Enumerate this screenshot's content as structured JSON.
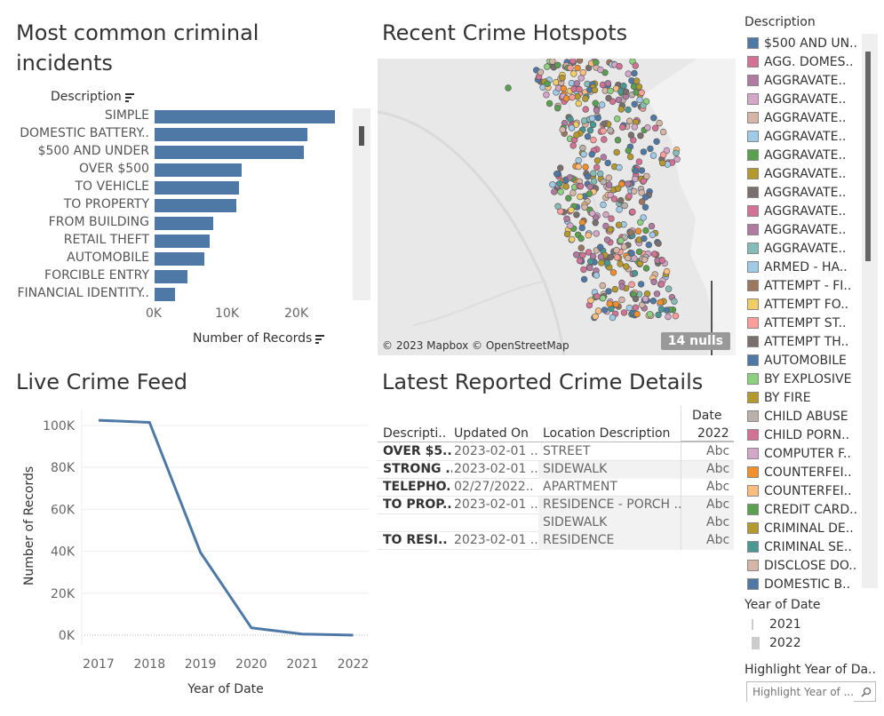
{
  "panels": {
    "bar_title": "Most common criminal incidents",
    "map_title": "Recent Crime Hotspots",
    "line_title": "Live Crime Feed",
    "table_title": "Latest Reported Crime Details"
  },
  "bar_chart": {
    "header": "Description",
    "xlabel": "Number of Records",
    "ticks": [
      "0K",
      "10K",
      "20K"
    ]
  },
  "map": {
    "attribution": "© 2023 Mapbox © OpenStreetMap",
    "nulls": "14 nulls"
  },
  "line_chart": {
    "ylabel": "Number of Records",
    "xlabel": "Year of Date",
    "yticks": [
      "100K",
      "80K",
      "60K",
      "40K",
      "20K",
      "0K"
    ],
    "xticks": [
      "2017",
      "2018",
      "2019",
      "2020",
      "2021",
      "2022"
    ]
  },
  "table": {
    "top_header": "Date",
    "year_header": "2022",
    "headers": [
      "Descripti..",
      "Updated On",
      "Location Description"
    ],
    "rows": [
      {
        "desc": "OVER $5..",
        "updated": "2023-02-01 ..",
        "location": "STREET",
        "abc": "Abc"
      },
      {
        "desc": "STRONG ..",
        "updated": "2023-02-01 ..",
        "location": "SIDEWALK",
        "abc": "Abc"
      },
      {
        "desc": "TELEPHO..",
        "updated": "02/27/2022..",
        "location": "APARTMENT",
        "abc": "Abc"
      },
      {
        "desc": "TO PROP..",
        "updated": "2023-02-01 ..",
        "location": "RESIDENCE - PORCH ..",
        "abc": "Abc"
      },
      {
        "desc": "",
        "updated": "",
        "location": "SIDEWALK",
        "abc": "Abc"
      },
      {
        "desc": "TO RESI..",
        "updated": "2023-02-01 ..",
        "location": "RESIDENCE",
        "abc": "Abc"
      }
    ]
  },
  "legend": {
    "title": "Description",
    "items": [
      {
        "label": "$500 AND UN..",
        "color": "#4e79a7"
      },
      {
        "label": "AGG. DOMES..",
        "color": "#d37295"
      },
      {
        "label": "AGGRAVATE..",
        "color": "#b07aa1"
      },
      {
        "label": "AGGRAVATE..",
        "color": "#d4a6c8"
      },
      {
        "label": "AGGRAVATE..",
        "color": "#d7b5a6"
      },
      {
        "label": "AGGRAVATE..",
        "color": "#a0cbe8"
      },
      {
        "label": "AGGRAVATE..",
        "color": "#59a14f"
      },
      {
        "label": "AGGRAVATE..",
        "color": "#b6992d"
      },
      {
        "label": "AGGRAVATE..",
        "color": "#79706e"
      },
      {
        "label": "AGGRAVATE..",
        "color": "#d37295"
      },
      {
        "label": "AGGRAVATE..",
        "color": "#b07aa1"
      },
      {
        "label": "AGGRAVATE..",
        "color": "#86bcb6"
      },
      {
        "label": "ARMED - HA..",
        "color": "#a0cbe8"
      },
      {
        "label": "ATTEMPT - FI..",
        "color": "#9d7660"
      },
      {
        "label": "ATTEMPT FO..",
        "color": "#f1ce63"
      },
      {
        "label": "ATTEMPT ST..",
        "color": "#ff9d9a"
      },
      {
        "label": "ATTEMPT TH..",
        "color": "#79706e"
      },
      {
        "label": "AUTOMOBILE",
        "color": "#4e79a7"
      },
      {
        "label": "BY EXPLOSIVE",
        "color": "#8cd17d"
      },
      {
        "label": "BY FIRE",
        "color": "#b6992d"
      },
      {
        "label": "CHILD ABUSE",
        "color": "#bab0ac"
      },
      {
        "label": "CHILD PORN..",
        "color": "#d37295"
      },
      {
        "label": "COMPUTER F..",
        "color": "#d4a6c8"
      },
      {
        "label": "COUNTERFEI..",
        "color": "#f28e2b"
      },
      {
        "label": "COUNTERFEI..",
        "color": "#ffbe7d"
      },
      {
        "label": "CREDIT CARD..",
        "color": "#59a14f"
      },
      {
        "label": "CRIMINAL DE..",
        "color": "#b6992d"
      },
      {
        "label": "CRIMINAL SE..",
        "color": "#499894"
      },
      {
        "label": "DISCLOSE DO..",
        "color": "#d7b5a6"
      },
      {
        "label": "DOMESTIC B..",
        "color": "#4e79a7"
      }
    ]
  },
  "year_legend": {
    "title": "Year of Date",
    "items": [
      {
        "label": "2021",
        "color": "#cccccc"
      },
      {
        "label": "2022",
        "color": "#cccccc"
      }
    ]
  },
  "highlight": {
    "title": "Highlight Year of Da..",
    "placeholder": "Highlight Year of ..."
  },
  "chart_data": [
    {
      "type": "bar",
      "title": "Most common criminal incidents",
      "xlabel": "Number of Records",
      "ylabel": "Description",
      "categories": [
        "SIMPLE",
        "DOMESTIC BATTERY..",
        "$500 AND UNDER",
        "OVER $500",
        "TO VEHICLE",
        "TO PROPERTY",
        "FROM BUILDING",
        "RETAIL THEFT",
        "AUTOMOBILE",
        "FORCIBLE ENTRY",
        "FINANCIAL IDENTITY.."
      ],
      "values": [
        26000,
        22000,
        21500,
        12500,
        12200,
        11800,
        8500,
        8000,
        7200,
        4800,
        3000
      ],
      "xlim": [
        0,
        29000
      ]
    },
    {
      "type": "line",
      "title": "Live Crime Feed",
      "xlabel": "Year of Date",
      "ylabel": "Number of Records",
      "x": [
        "2017",
        "2018",
        "2019",
        "2020",
        "2021",
        "2022"
      ],
      "series": [
        {
          "values": [
            102500,
            101500,
            39500,
            3500,
            500,
            0
          ]
        }
      ],
      "ylim": [
        0,
        110000
      ]
    }
  ]
}
